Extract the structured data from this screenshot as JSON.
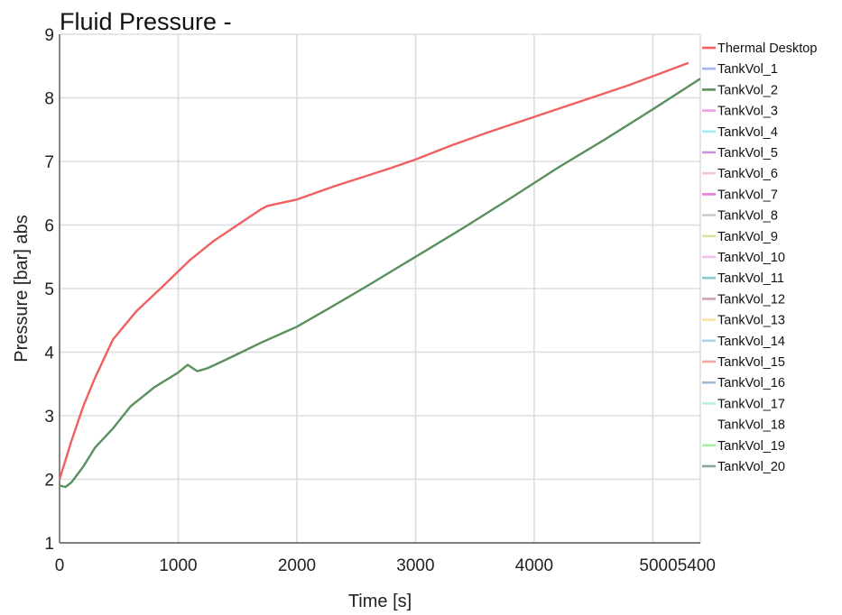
{
  "chart_data": {
    "type": "line",
    "title": "Fluid Pressure -",
    "xlabel": "Time [s]",
    "ylabel": "Pressure [bar] abs",
    "xlim": [
      0,
      5400
    ],
    "ylim": [
      1,
      9
    ],
    "x_ticks": [
      {
        "value": 0,
        "label": "0"
      },
      {
        "value": 1000,
        "label": "1000"
      },
      {
        "value": 2000,
        "label": "2000"
      },
      {
        "value": 3000,
        "label": "3000"
      },
      {
        "value": 4000,
        "label": "4000"
      },
      {
        "value": 5000,
        "label": "5000"
      },
      {
        "value": 5400,
        "label": "5400"
      }
    ],
    "y_ticks": [
      {
        "value": 1,
        "label": "1"
      },
      {
        "value": 2,
        "label": "2"
      },
      {
        "value": 3,
        "label": "3"
      },
      {
        "value": 4,
        "label": "4"
      },
      {
        "value": 5,
        "label": "5"
      },
      {
        "value": 6,
        "label": "6"
      },
      {
        "value": 7,
        "label": "7"
      },
      {
        "value": 8,
        "label": "8"
      },
      {
        "value": 9,
        "label": "9"
      }
    ],
    "grid": true,
    "legend_position": "right",
    "series": [
      {
        "name": "Thermal Desktop",
        "color": "#f06060",
        "x": [
          0,
          100,
          200,
          300,
          450,
          650,
          850,
          1100,
          1300,
          1500,
          1700,
          1750,
          1800,
          2000,
          2300,
          2600,
          2800,
          3000,
          3300,
          3600,
          4000,
          4400,
          4800,
          5300
        ],
        "y": [
          2.0,
          2.6,
          3.15,
          3.6,
          4.2,
          4.65,
          5.0,
          5.45,
          5.75,
          6.0,
          6.25,
          6.3,
          6.32,
          6.4,
          6.6,
          6.78,
          6.9,
          7.03,
          7.25,
          7.45,
          7.7,
          7.95,
          8.2,
          8.55
        ]
      },
      {
        "name": "TankVol_1",
        "color": "#aab4f0",
        "x": [],
        "y": []
      },
      {
        "name": "TankVol_2",
        "color": "#5a9060",
        "x": [
          0,
          50,
          100,
          200,
          300,
          450,
          600,
          800,
          1000,
          1080,
          1120,
          1160,
          1200,
          1250,
          1400,
          1700,
          2000,
          2300,
          2600,
          3000,
          3400,
          3800,
          4200,
          4600,
          5000,
          5400
        ],
        "y": [
          1.9,
          1.88,
          1.95,
          2.2,
          2.5,
          2.8,
          3.15,
          3.45,
          3.68,
          3.8,
          3.75,
          3.7,
          3.72,
          3.75,
          3.88,
          4.15,
          4.4,
          4.72,
          5.05,
          5.5,
          5.95,
          6.42,
          6.9,
          7.35,
          7.82,
          8.3
        ]
      },
      {
        "name": "TankVol_3",
        "color": "#e6a0e6",
        "x": [],
        "y": []
      },
      {
        "name": "TankVol_4",
        "color": "#a8e8f0",
        "x": [],
        "y": []
      },
      {
        "name": "TankVol_5",
        "color": "#c894e0",
        "x": [],
        "y": []
      },
      {
        "name": "TankVol_6",
        "color": "#f0c8c8",
        "x": [],
        "y": []
      },
      {
        "name": "TankVol_7",
        "color": "#e080d8",
        "x": [],
        "y": []
      },
      {
        "name": "TankVol_8",
        "color": "#cccccc",
        "x": [],
        "y": []
      },
      {
        "name": "TankVol_9",
        "color": "#e0e0a0",
        "x": [],
        "y": []
      },
      {
        "name": "TankVol_10",
        "color": "#f0c0f0",
        "x": [],
        "y": []
      },
      {
        "name": "TankVol_11",
        "color": "#8cc8c8",
        "x": [],
        "y": []
      },
      {
        "name": "TankVol_12",
        "color": "#d0a0b8",
        "x": [],
        "y": []
      },
      {
        "name": "TankVol_13",
        "color": "#f8e0a0",
        "x": [],
        "y": []
      },
      {
        "name": "TankVol_14",
        "color": "#a8d8e8",
        "x": [],
        "y": []
      },
      {
        "name": "TankVol_15",
        "color": "#f0a8a8",
        "x": [],
        "y": []
      },
      {
        "name": "TankVol_16",
        "color": "#a0b8d0",
        "x": [],
        "y": []
      },
      {
        "name": "TankVol_17",
        "color": "#b8f0d8",
        "x": [],
        "y": []
      },
      {
        "name": "TankVol_18",
        "color": "#ffffff",
        "x": [],
        "y": []
      },
      {
        "name": "TankVol_19",
        "color": "#a8f0a0",
        "x": [],
        "y": []
      },
      {
        "name": "TankVol_20",
        "color": "#8aa894",
        "x": [],
        "y": []
      }
    ]
  }
}
